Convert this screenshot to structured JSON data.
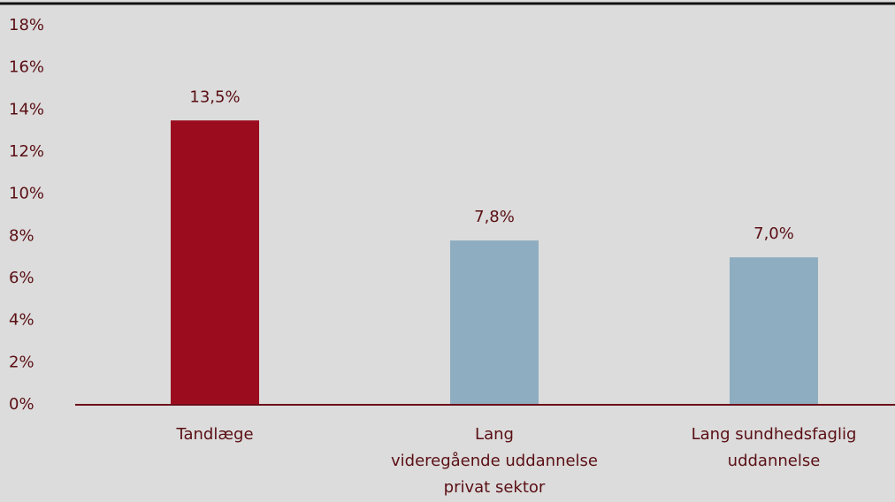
{
  "chart_data": {
    "type": "bar",
    "categories": [
      [
        "Tandlæge"
      ],
      [
        "Lang",
        "videregående uddannelse",
        "privat sektor"
      ],
      [
        "Lang sundhedsfaglig",
        "uddannelse"
      ]
    ],
    "values": [
      13.5,
      7.8,
      7.0
    ],
    "value_labels": [
      "13,5%",
      "7,8%",
      "7,0%"
    ],
    "colors": [
      "#9b0d1e",
      "#8fadc0",
      "#8fadc0"
    ],
    "ylim": [
      0,
      18
    ],
    "yticks": [
      {
        "value": 0,
        "label": "0%"
      },
      {
        "value": 2,
        "label": "2%"
      },
      {
        "value": 4,
        "label": "4%"
      },
      {
        "value": 6,
        "label": "6%"
      },
      {
        "value": 8,
        "label": "8%"
      },
      {
        "value": 10,
        "label": "10%"
      },
      {
        "value": 12,
        "label": "12%"
      },
      {
        "value": 14,
        "label": "14%"
      },
      {
        "value": 16,
        "label": "16%"
      },
      {
        "value": 18,
        "label": "18%"
      }
    ],
    "grid": false
  }
}
